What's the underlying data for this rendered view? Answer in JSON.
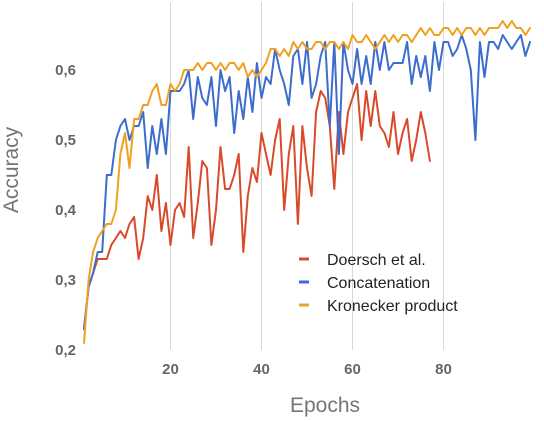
{
  "chart_data": {
    "type": "line",
    "xlabel": "Epochs",
    "ylabel": "Accuracy",
    "xlim": [
      1,
      99
    ],
    "ylim": [
      0.2,
      0.7
    ],
    "xticks": [
      20,
      40,
      60,
      80
    ],
    "xtick_labels": [
      "20",
      "40",
      "60",
      "80"
    ],
    "yticks": [
      0.2,
      0.3,
      0.4,
      0.5,
      0.6
    ],
    "ytick_labels": [
      "0,2",
      "0,3",
      "0,4",
      "0,5",
      "0,6"
    ],
    "grid": "vertical",
    "legend_position": "bottom-right",
    "series": [
      {
        "name": "Doersch et al.",
        "color": "#d94a2b",
        "x": [
          1,
          2,
          3,
          4,
          5,
          6,
          7,
          8,
          9,
          10,
          11,
          12,
          13,
          14,
          15,
          16,
          17,
          18,
          19,
          20,
          21,
          22,
          23,
          24,
          25,
          26,
          27,
          28,
          29,
          30,
          31,
          32,
          33,
          34,
          35,
          36,
          37,
          38,
          39,
          40,
          41,
          42,
          43,
          44,
          45,
          46,
          47,
          48,
          49,
          50,
          51,
          52,
          53,
          54,
          55,
          56,
          57,
          58,
          59,
          60,
          61,
          62,
          63,
          64,
          65,
          66,
          67,
          68,
          69,
          70,
          71,
          72,
          73,
          74,
          75,
          76,
          77
        ],
        "values": [
          0.23,
          0.29,
          0.31,
          0.33,
          0.33,
          0.33,
          0.35,
          0.36,
          0.37,
          0.36,
          0.38,
          0.39,
          0.33,
          0.36,
          0.42,
          0.4,
          0.45,
          0.37,
          0.41,
          0.35,
          0.4,
          0.41,
          0.39,
          0.49,
          0.36,
          0.41,
          0.47,
          0.46,
          0.35,
          0.4,
          0.49,
          0.43,
          0.43,
          0.45,
          0.48,
          0.34,
          0.42,
          0.46,
          0.44,
          0.51,
          0.48,
          0.45,
          0.5,
          0.53,
          0.4,
          0.48,
          0.52,
          0.38,
          0.52,
          0.46,
          0.42,
          0.54,
          0.57,
          0.56,
          0.52,
          0.43,
          0.54,
          0.48,
          0.54,
          0.56,
          0.58,
          0.5,
          0.57,
          0.52,
          0.57,
          0.52,
          0.51,
          0.49,
          0.54,
          0.48,
          0.51,
          0.53,
          0.47,
          0.5,
          0.54,
          0.51,
          0.47
        ]
      },
      {
        "name": "Concatenation",
        "color": "#3d6dcc",
        "x": [
          1,
          2,
          3,
          4,
          5,
          6,
          7,
          8,
          9,
          10,
          11,
          12,
          13,
          14,
          15,
          16,
          17,
          18,
          19,
          20,
          21,
          22,
          23,
          24,
          25,
          26,
          27,
          28,
          29,
          30,
          31,
          32,
          33,
          34,
          35,
          36,
          37,
          38,
          39,
          40,
          41,
          42,
          43,
          44,
          45,
          46,
          47,
          48,
          49,
          50,
          51,
          52,
          53,
          54,
          55,
          56,
          57,
          58,
          59,
          60,
          61,
          62,
          63,
          64,
          65,
          66,
          67,
          68,
          69,
          70,
          71,
          72,
          73,
          74,
          75,
          76,
          77,
          78,
          79,
          80,
          81,
          82,
          83,
          84,
          85,
          86,
          87,
          88,
          89,
          90,
          91,
          92,
          93,
          94,
          95,
          96,
          97,
          98,
          99
        ],
        "values": [
          0.23,
          0.29,
          0.31,
          0.34,
          0.34,
          0.45,
          0.45,
          0.5,
          0.52,
          0.53,
          0.5,
          0.52,
          0.52,
          0.54,
          0.46,
          0.52,
          0.48,
          0.53,
          0.48,
          0.57,
          0.57,
          0.57,
          0.58,
          0.6,
          0.53,
          0.59,
          0.56,
          0.55,
          0.59,
          0.52,
          0.6,
          0.57,
          0.59,
          0.51,
          0.57,
          0.53,
          0.59,
          0.54,
          0.61,
          0.56,
          0.59,
          0.58,
          0.63,
          0.6,
          0.58,
          0.55,
          0.62,
          0.63,
          0.58,
          0.64,
          0.56,
          0.58,
          0.62,
          0.64,
          0.52,
          0.64,
          0.48,
          0.64,
          0.6,
          0.58,
          0.63,
          0.58,
          0.62,
          0.58,
          0.64,
          0.6,
          0.64,
          0.6,
          0.61,
          0.61,
          0.61,
          0.64,
          0.58,
          0.62,
          0.59,
          0.62,
          0.57,
          0.64,
          0.6,
          0.64,
          0.64,
          0.62,
          0.63,
          0.65,
          0.63,
          0.6,
          0.5,
          0.64,
          0.59,
          0.64,
          0.64,
          0.63,
          0.65,
          0.64,
          0.63,
          0.64,
          0.65,
          0.62,
          0.64
        ]
      },
      {
        "name": "Kronecker product",
        "color": "#f0a020",
        "x": [
          1,
          2,
          3,
          4,
          5,
          6,
          7,
          8,
          9,
          10,
          11,
          12,
          13,
          14,
          15,
          16,
          17,
          18,
          19,
          20,
          21,
          22,
          23,
          24,
          25,
          26,
          27,
          28,
          29,
          30,
          31,
          32,
          33,
          34,
          35,
          36,
          37,
          38,
          39,
          40,
          41,
          42,
          43,
          44,
          45,
          46,
          47,
          48,
          49,
          50,
          51,
          52,
          53,
          54,
          55,
          56,
          57,
          58,
          59,
          60,
          61,
          62,
          63,
          64,
          65,
          66,
          67,
          68,
          69,
          70,
          71,
          72,
          73,
          74,
          75,
          76,
          77,
          78,
          79,
          80,
          81,
          82,
          83,
          84,
          85,
          86,
          87,
          88,
          89,
          90,
          91,
          92,
          93,
          94,
          95,
          96,
          97,
          98,
          99
        ],
        "values": [
          0.21,
          0.3,
          0.34,
          0.36,
          0.37,
          0.38,
          0.38,
          0.4,
          0.48,
          0.51,
          0.46,
          0.53,
          0.53,
          0.55,
          0.55,
          0.57,
          0.58,
          0.55,
          0.55,
          0.58,
          0.57,
          0.58,
          0.6,
          0.6,
          0.6,
          0.61,
          0.6,
          0.61,
          0.61,
          0.6,
          0.61,
          0.6,
          0.61,
          0.61,
          0.6,
          0.61,
          0.59,
          0.6,
          0.59,
          0.6,
          0.61,
          0.63,
          0.63,
          0.62,
          0.63,
          0.62,
          0.64,
          0.63,
          0.64,
          0.63,
          0.63,
          0.64,
          0.64,
          0.63,
          0.64,
          0.64,
          0.63,
          0.64,
          0.63,
          0.65,
          0.64,
          0.64,
          0.65,
          0.64,
          0.63,
          0.64,
          0.65,
          0.64,
          0.65,
          0.64,
          0.65,
          0.65,
          0.64,
          0.65,
          0.66,
          0.65,
          0.66,
          0.65,
          0.65,
          0.66,
          0.66,
          0.65,
          0.66,
          0.65,
          0.66,
          0.66,
          0.65,
          0.66,
          0.65,
          0.66,
          0.66,
          0.66,
          0.67,
          0.66,
          0.67,
          0.66,
          0.66,
          0.65,
          0.66
        ]
      }
    ]
  }
}
